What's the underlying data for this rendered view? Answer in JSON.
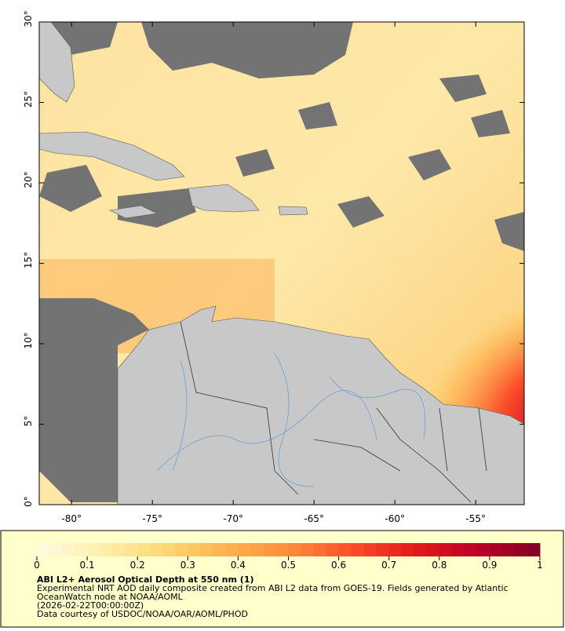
{
  "map": {
    "lonlim": [
      -82,
      -52
    ],
    "latlim": [
      0,
      30
    ],
    "lon_ticks": [
      {
        "value": -80,
        "label": "-80°"
      },
      {
        "value": -75,
        "label": "-75°"
      },
      {
        "value": -70,
        "label": "-70°"
      },
      {
        "value": -65,
        "label": "-65°"
      },
      {
        "value": -60,
        "label": "-60°"
      },
      {
        "value": -55,
        "label": "-55°"
      }
    ],
    "lat_ticks": [
      {
        "value": 0,
        "label": "0°"
      },
      {
        "value": 5,
        "label": "5°"
      },
      {
        "value": 10,
        "label": "10°"
      },
      {
        "value": 15,
        "label": "15°"
      },
      {
        "value": 20,
        "label": "20°"
      },
      {
        "value": 25,
        "label": "25°"
      },
      {
        "value": 30,
        "label": "30°"
      }
    ]
  },
  "colorbar": {
    "range": [
      0,
      1
    ],
    "ticks": [
      0,
      0.1,
      0.2,
      0.3,
      0.4,
      0.5,
      0.6,
      0.7,
      0.8,
      0.9,
      1
    ],
    "colors": [
      "#fffbe0",
      "#ffefb0",
      "#fed976",
      "#feb24c",
      "#fd8d3c",
      "#fc4e2a",
      "#e31a1c",
      "#bd0026",
      "#800026"
    ]
  },
  "caption": {
    "title": "ABI L2+ Aerosol Optical Depth at 550 nm (1)",
    "lines": [
      "Experimental NRT AOD daily composite created from ABI L2 data from GOES-19. Fields generated by Atlantic",
      "OceanWatch node at NOAA/AOML",
      "(2026-02-22T00:00:00Z)",
      "Data courtesy of USDOC/NOAA/OAR/AOML/PHOD"
    ]
  }
}
